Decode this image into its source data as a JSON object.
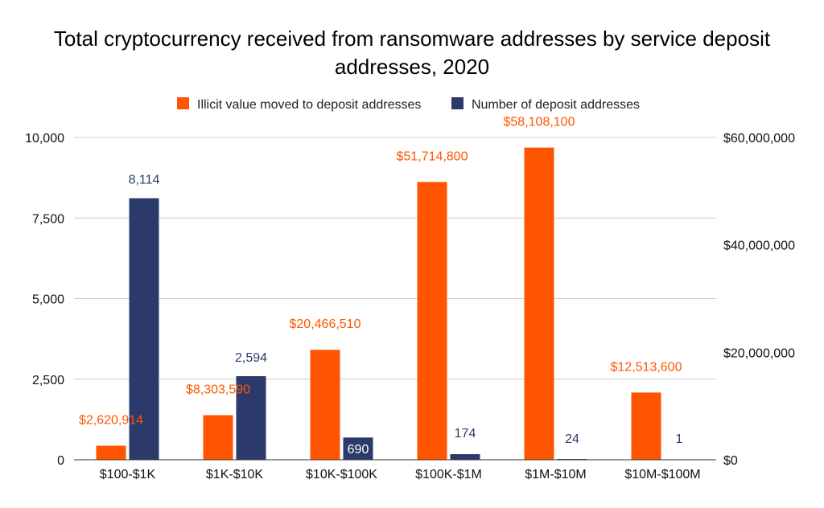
{
  "chart_data": {
    "type": "bar",
    "title_lines": [
      "Total cryptocurrency received from ransomware addresses by service deposit",
      "addresses, 2020"
    ],
    "categories": [
      "$100-$1K",
      "$1K-$10K",
      "$10K-$100K",
      "$100K-$1M",
      "$1M-$10M",
      "$10M-$100M"
    ],
    "series": [
      {
        "name": "Illicit value moved to deposit addresses",
        "axis": "right",
        "color": "#ff5500",
        "values": [
          2620914,
          8303590,
          20466510,
          51714800,
          58108100,
          12513600
        ],
        "labels": [
          "$2,620,914",
          "$8,303,590",
          "$20,466,510",
          "$51,714,800",
          "$58,108,100",
          "$12,513,600"
        ]
      },
      {
        "name": "Number of deposit addresses",
        "axis": "left",
        "color": "#2b3a6b",
        "values": [
          8114,
          2594,
          690,
          174,
          24,
          1
        ],
        "labels": [
          "8,114",
          "2,594",
          "690",
          "174",
          "24",
          "1"
        ]
      }
    ],
    "left_axis": {
      "ylim": [
        0,
        10000
      ],
      "ticks": [
        0,
        2500,
        5000,
        7500,
        10000
      ],
      "tick_labels": [
        "0",
        "2,500",
        "5,000",
        "7,500",
        "10,000"
      ]
    },
    "right_axis": {
      "ylim": [
        0,
        60000000
      ],
      "ticks": [
        0,
        20000000,
        40000000,
        60000000
      ],
      "tick_labels": [
        "$0",
        "$20,000,000",
        "$40,000,000",
        "$60,000,000"
      ]
    },
    "legend_position": "top-center",
    "grid": true
  }
}
